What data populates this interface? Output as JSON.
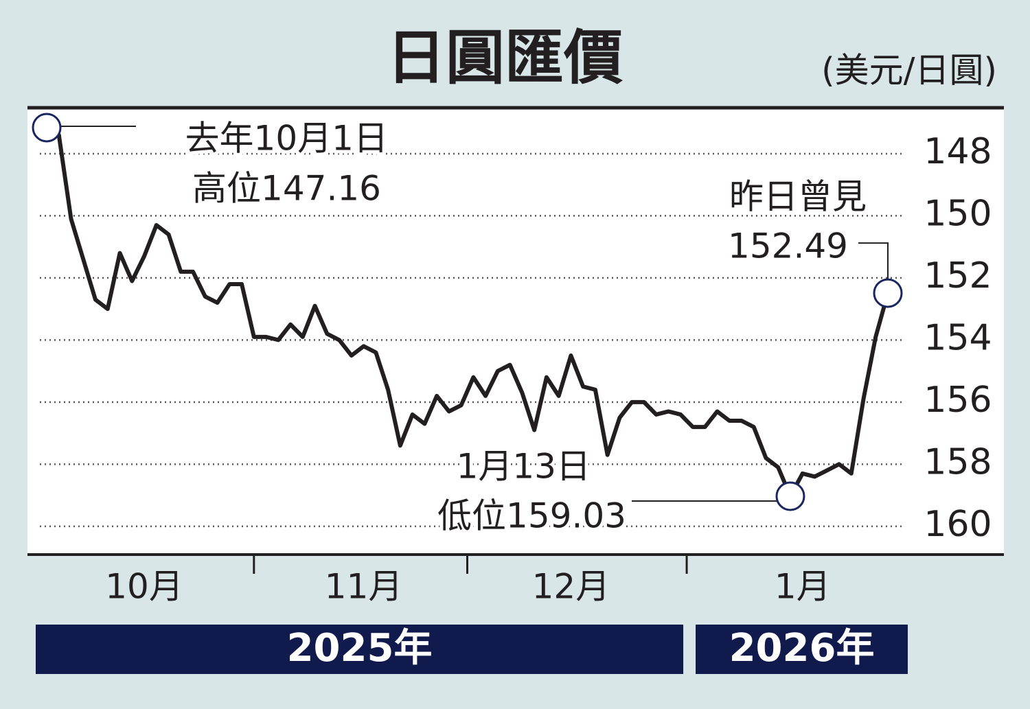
{
  "chart_data": {
    "type": "line",
    "title": "日圓匯價",
    "unit": "(美元/日圓)",
    "categories": [
      null,
      null,
      null,
      null,
      null,
      null,
      null,
      null,
      "10月",
      null,
      null,
      null,
      null,
      null,
      null,
      null,
      null,
      null,
      null,
      null,
      null,
      null,
      null,
      null,
      null,
      null,
      "11月",
      null,
      null,
      null,
      null,
      null,
      null,
      null,
      null,
      null,
      null,
      null,
      null,
      null,
      null,
      null,
      null,
      "12月",
      null,
      null,
      null,
      null,
      null,
      null,
      null,
      null,
      null,
      null,
      null,
      null,
      null,
      null,
      null,
      null,
      null,
      null,
      "1月",
      null,
      null,
      null,
      null,
      null,
      null,
      null
    ],
    "series": [
      {
        "color": "#231f20",
        "values": [
          147.16,
          147.4,
          150.1,
          151.4,
          152.7,
          153.0,
          151.2,
          152.1,
          151.3,
          150.3,
          150.6,
          151.8,
          151.8,
          152.6,
          152.8,
          152.2,
          152.2,
          153.9,
          153.9,
          154.0,
          153.5,
          153.9,
          152.9,
          153.8,
          154.0,
          154.5,
          154.2,
          154.4,
          155.6,
          157.4,
          156.4,
          156.7,
          155.8,
          156.3,
          156.1,
          155.2,
          155.8,
          155.0,
          154.8,
          155.7,
          156.9,
          155.2,
          155.8,
          154.5,
          155.5,
          155.6,
          157.7,
          156.5,
          156.0,
          156.0,
          156.4,
          156.3,
          156.4,
          156.8,
          156.8,
          156.3,
          156.6,
          156.6,
          156.8,
          157.8,
          158.1,
          159.03,
          158.3,
          158.4,
          158.2,
          158.0,
          158.3,
          155.9,
          153.9,
          152.49
        ]
      }
    ],
    "ylim": [
      146.52,
      160.91
    ],
    "y_reversed": true,
    "yticks": [
      148,
      150,
      152,
      154,
      156,
      158,
      160
    ],
    "grid": true,
    "years": [
      "2025年",
      "2026年"
    ],
    "annotations": [
      [
        "去年10月1日",
        "高位147.16"
      ],
      [
        "1月13日",
        "低位159.03"
      ],
      [
        "昨日曾見",
        "152.49"
      ]
    ]
  }
}
